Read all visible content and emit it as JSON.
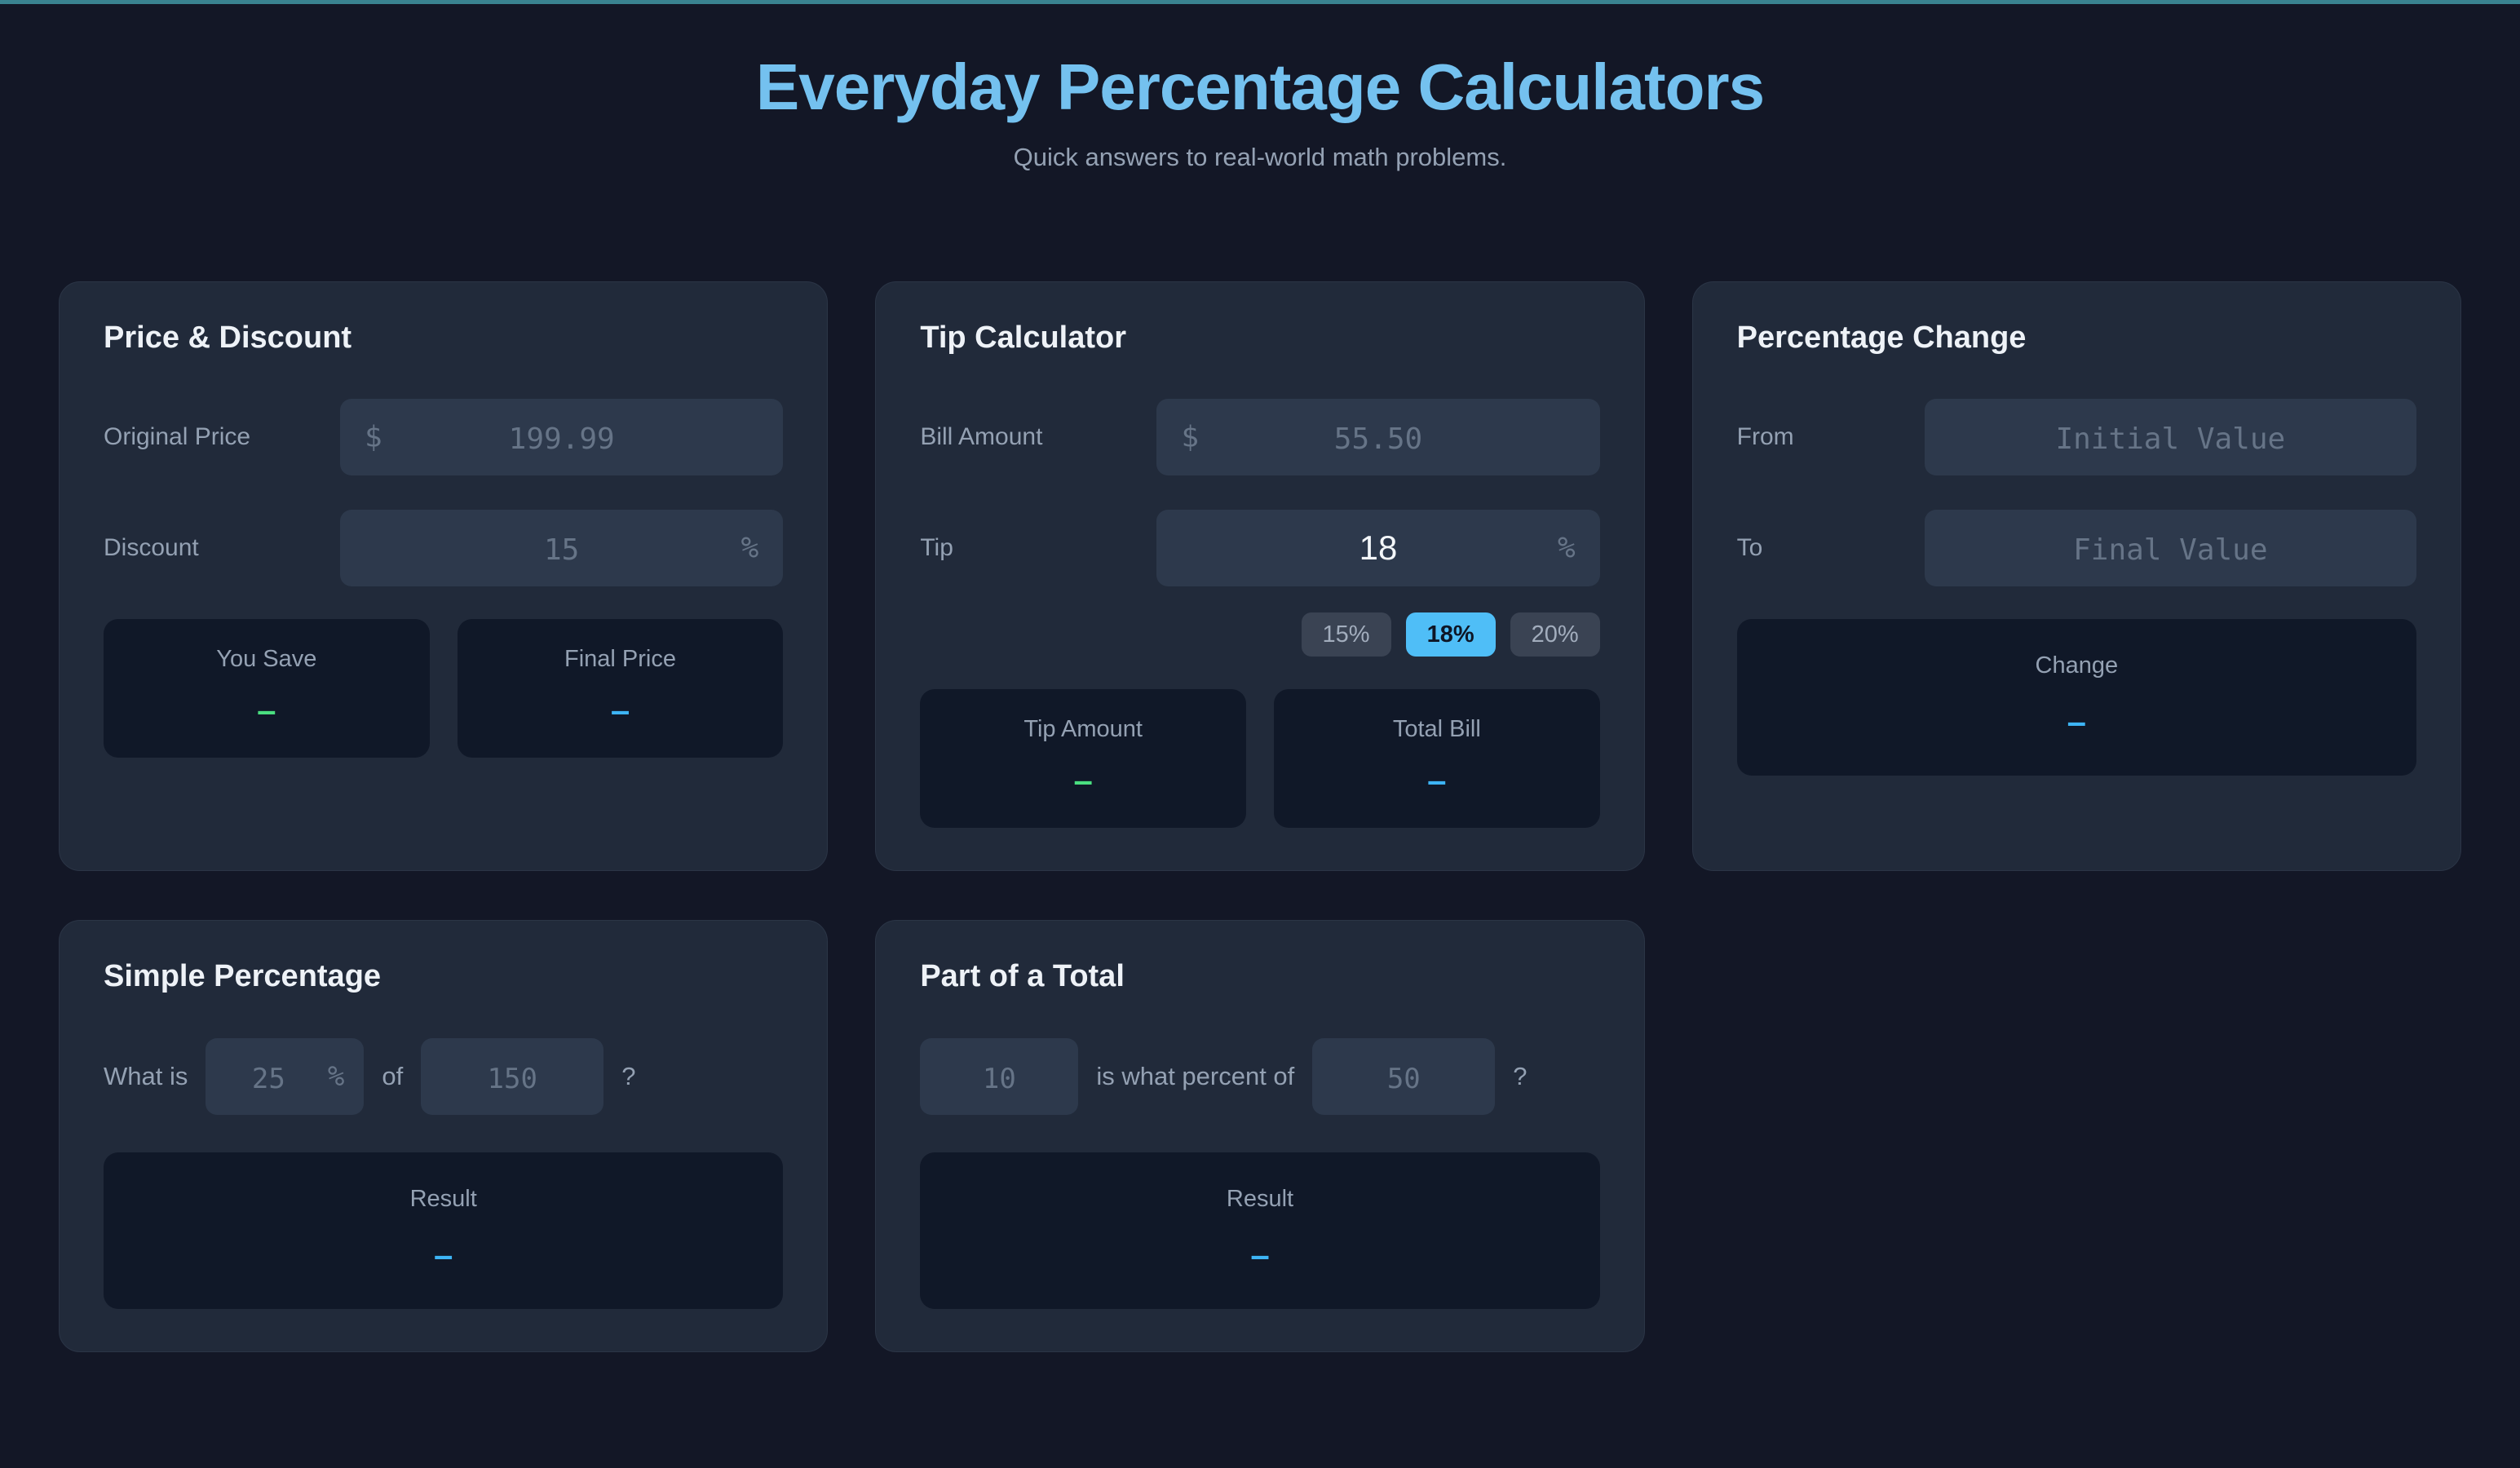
{
  "page": {
    "title": "Everyday Percentage Calculators",
    "subtitle": "Quick answers to real-world math problems.",
    "accent_teal": "#3a8390",
    "title_blue": "#74c1ef",
    "preset_active_blue": "#4fbef7",
    "result_green": "#4ade80",
    "result_blue": "#3db4f5"
  },
  "cards": {
    "price_discount": {
      "heading": "Price & Discount",
      "fields": [
        {
          "label": "Original Price",
          "prefix": "$",
          "placeholder": "199.99"
        },
        {
          "label": "Discount",
          "placeholder": "15",
          "suffix": "%"
        }
      ],
      "results": [
        {
          "label": "You Save",
          "value": "–"
        },
        {
          "label": "Final Price",
          "value": "–"
        }
      ]
    },
    "tip": {
      "heading": "Tip Calculator",
      "fields": [
        {
          "label": "Bill Amount",
          "prefix": "$",
          "placeholder": "55.50"
        },
        {
          "label": "Tip",
          "value": "18",
          "suffix": "%"
        }
      ],
      "presets": [
        {
          "label": "15%"
        },
        {
          "label": "18%"
        },
        {
          "label": "20%"
        }
      ],
      "results": [
        {
          "label": "Tip Amount",
          "value": "–"
        },
        {
          "label": "Total Bill",
          "value": "–"
        }
      ]
    },
    "pct_change": {
      "heading": "Percentage Change",
      "fields": [
        {
          "label": "From",
          "placeholder": "Initial Value"
        },
        {
          "label": "To",
          "placeholder": "Final Value"
        }
      ],
      "result": {
        "label": "Change",
        "value": "–"
      }
    },
    "simple_pct": {
      "heading": "Simple Percentage",
      "sentence": {
        "lead": "What is",
        "mid": "of",
        "tail": "?"
      },
      "inputs": [
        {
          "placeholder": "25",
          "suffix": "%"
        },
        {
          "placeholder": "150"
        }
      ],
      "result": {
        "label": "Result",
        "value": "–"
      }
    },
    "part_total": {
      "heading": "Part of a Total",
      "sentence": {
        "mid": "is what percent of",
        "tail": "?"
      },
      "inputs": [
        {
          "placeholder": "10"
        },
        {
          "placeholder": "50"
        }
      ],
      "result": {
        "label": "Result",
        "value": "–"
      }
    }
  }
}
